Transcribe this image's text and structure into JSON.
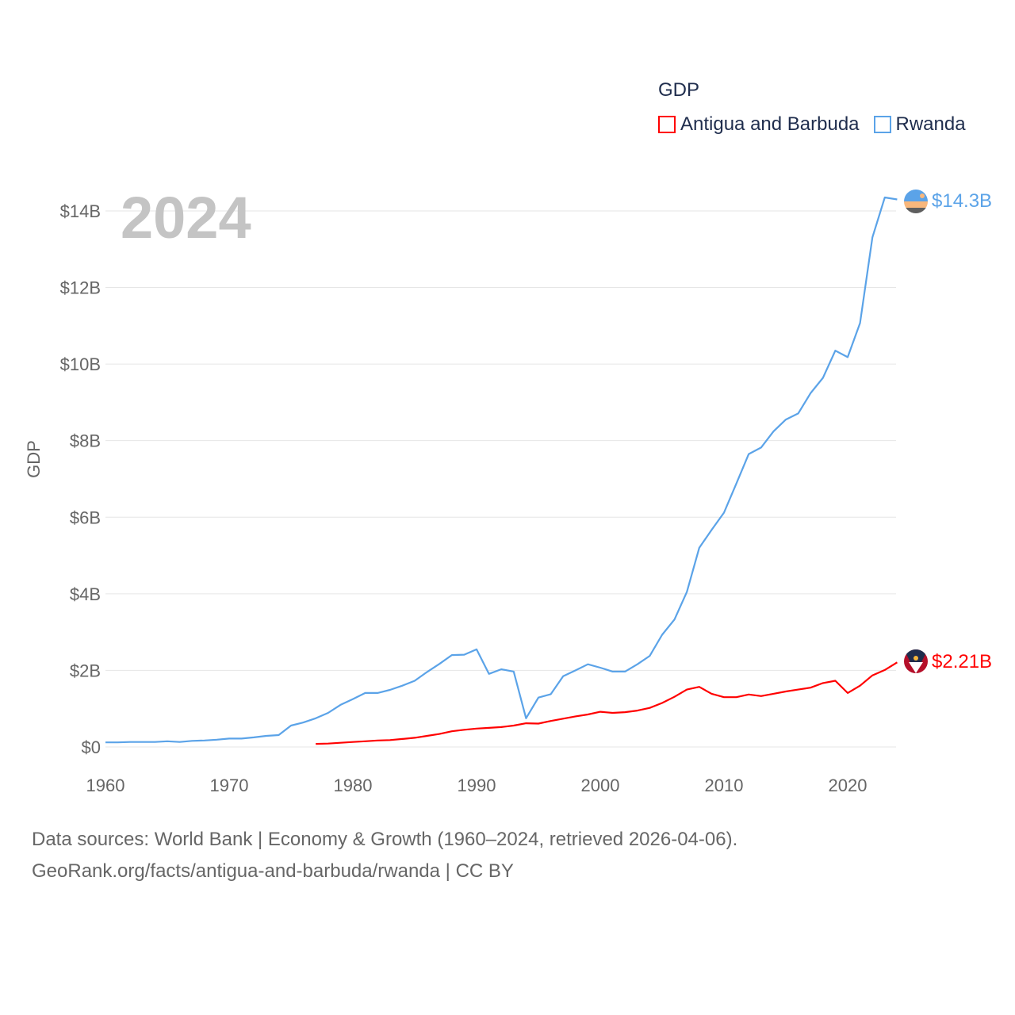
{
  "chart_data": {
    "type": "line",
    "title": "GDP",
    "year_label": "2024",
    "ylabel": "GDP",
    "xlabel": "",
    "xlim": [
      1960,
      2024
    ],
    "ylim": [
      0,
      14.8
    ],
    "x_ticks": [
      1960,
      1970,
      1980,
      1990,
      2000,
      2010,
      2020
    ],
    "y_ticks": [
      0,
      2,
      4,
      6,
      8,
      10,
      12,
      14
    ],
    "y_tick_labels": [
      "$0",
      "$2B",
      "$4B",
      "$6B",
      "$8B",
      "$10B",
      "$12B",
      "$14B"
    ],
    "grid": true,
    "legend_placement": "top-right",
    "series": [
      {
        "name": "Antigua and Barbuda",
        "color": "#ff0000",
        "start_year": 1977,
        "end_label": "$2.21B",
        "values": [
          0.08,
          0.09,
          0.11,
          0.13,
          0.15,
          0.17,
          0.18,
          0.21,
          0.24,
          0.29,
          0.34,
          0.41,
          0.45,
          0.48,
          0.5,
          0.52,
          0.56,
          0.62,
          0.61,
          0.68,
          0.74,
          0.8,
          0.85,
          0.92,
          0.89,
          0.91,
          0.95,
          1.02,
          1.15,
          1.31,
          1.5,
          1.57,
          1.39,
          1.3,
          1.3,
          1.37,
          1.33,
          1.39,
          1.45,
          1.5,
          1.55,
          1.67,
          1.73,
          1.41,
          1.6,
          1.87,
          2.01,
          2.21
        ]
      },
      {
        "name": "Rwanda",
        "color": "#5ba3e8",
        "start_year": 1960,
        "end_label": "$14.3B",
        "values": [
          0.12,
          0.12,
          0.13,
          0.13,
          0.13,
          0.15,
          0.13,
          0.16,
          0.17,
          0.19,
          0.22,
          0.22,
          0.25,
          0.29,
          0.31,
          0.56,
          0.64,
          0.75,
          0.89,
          1.1,
          1.25,
          1.41,
          1.41,
          1.49,
          1.6,
          1.73,
          1.96,
          2.17,
          2.4,
          2.41,
          2.55,
          1.91,
          2.03,
          1.97,
          0.75,
          1.29,
          1.38,
          1.85,
          2.0,
          2.16,
          2.07,
          1.97,
          1.97,
          2.16,
          2.38,
          2.93,
          3.33,
          4.05,
          5.2,
          5.67,
          6.12,
          6.88,
          7.65,
          7.82,
          8.24,
          8.55,
          8.71,
          9.24,
          9.64,
          10.35,
          10.18,
          11.07,
          13.31,
          14.35,
          14.3
        ]
      }
    ]
  },
  "footer": {
    "line1": "Data sources: World Bank | Economy & Growth (1960–2024, retrieved 2026-04-06).",
    "line2": "GeoRank.org/facts/antigua-and-barbuda/rwanda | CC BY"
  }
}
